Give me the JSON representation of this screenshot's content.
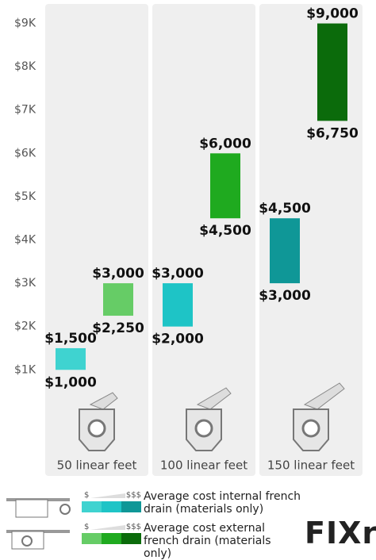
{
  "chart_data": {
    "type": "floating-bar",
    "categories": [
      "50 linear feet",
      "100 linear feet",
      "150 linear feet"
    ],
    "ylim": [
      -1450,
      9450
    ],
    "yticks": [
      {
        "value": 1000,
        "label": "$1K"
      },
      {
        "value": 2000,
        "label": "$2K"
      },
      {
        "value": 3000,
        "label": "$3K"
      },
      {
        "value": 4000,
        "label": "$4K"
      },
      {
        "value": 5000,
        "label": "$5K"
      },
      {
        "value": 6000,
        "label": "$6K"
      },
      {
        "value": 7000,
        "label": "$7K"
      },
      {
        "value": 8000,
        "label": "$8K"
      },
      {
        "value": 9000,
        "label": "$9K"
      }
    ],
    "series": [
      {
        "name": "Average cost internal french drain (materials only)",
        "colors": [
          "#3fd3d0",
          "#1ec4c6",
          "#0f9797"
        ],
        "low": [
          1000,
          2000,
          3000
        ],
        "high": [
          1500,
          3000,
          4500
        ],
        "low_labels": [
          "$1,000",
          "$2,000",
          "$3,000"
        ],
        "high_labels": [
          "$1,500",
          "$3,000",
          "$4,500"
        ]
      },
      {
        "name": "Average cost external french drain (materials only)",
        "colors": [
          "#66cc66",
          "#1faa1f",
          "#0b6b0b"
        ],
        "low": [
          2250,
          4500,
          6750
        ],
        "high": [
          3000,
          6000,
          9000
        ],
        "low_labels": [
          "$2,250",
          "$4,500",
          "$6,750"
        ],
        "high_labels": [
          "$3,000",
          "$6,000",
          "$9,000"
        ]
      }
    ],
    "legend_scale": [
      "$",
      "$$$"
    ],
    "brand": "FIXr"
  }
}
